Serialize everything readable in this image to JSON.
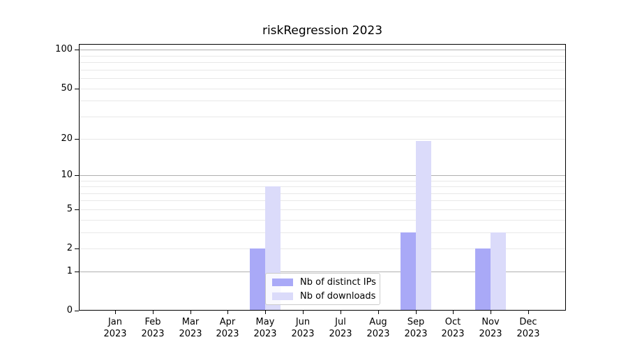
{
  "chart_data": {
    "type": "bar",
    "title": "riskRegression 2023",
    "categories": [
      [
        "Jan",
        "2023"
      ],
      [
        "Feb",
        "2023"
      ],
      [
        "Mar",
        "2023"
      ],
      [
        "Apr",
        "2023"
      ],
      [
        "May",
        "2023"
      ],
      [
        "Jun",
        "2023"
      ],
      [
        "Jul",
        "2023"
      ],
      [
        "Aug",
        "2023"
      ],
      [
        "Sep",
        "2023"
      ],
      [
        "Oct",
        "2023"
      ],
      [
        "Nov",
        "2023"
      ],
      [
        "Dec",
        "2023"
      ]
    ],
    "series": [
      {
        "name": "Nb of distinct IPs",
        "color": "#a9a9f7",
        "values": [
          0,
          0,
          0,
          0,
          2,
          0,
          0,
          0,
          3,
          0,
          2,
          0
        ]
      },
      {
        "name": "Nb of downloads",
        "color": "#dbdbfa",
        "values": [
          0,
          0,
          0,
          0,
          8,
          0,
          0,
          0,
          19,
          0,
          3,
          0
        ]
      }
    ],
    "yscale": "log1p",
    "ylim": [
      0,
      111
    ],
    "y_ticks": [
      0,
      1,
      2,
      5,
      10,
      20,
      50,
      100
    ],
    "gridlines": {
      "major": [
        1,
        10,
        100
      ],
      "minor": [
        2,
        3,
        4,
        5,
        6,
        7,
        8,
        9,
        20,
        30,
        40,
        50,
        60,
        70,
        80,
        90
      ]
    },
    "grid_color_major": "#b0b0b0",
    "grid_color_minor": "#e8e8e8",
    "legend_position": "inside-bottom-center",
    "xlabel": "",
    "ylabel": ""
  }
}
